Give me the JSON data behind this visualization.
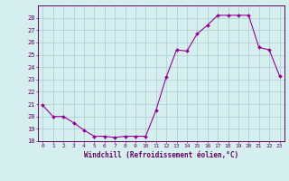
{
  "x": [
    0,
    1,
    2,
    3,
    4,
    5,
    6,
    7,
    8,
    9,
    10,
    11,
    12,
    13,
    14,
    15,
    16,
    17,
    18,
    19,
    20,
    21,
    22,
    23
  ],
  "y": [
    20.9,
    20.0,
    20.0,
    19.5,
    18.9,
    18.4,
    18.4,
    18.3,
    18.4,
    18.4,
    18.4,
    20.5,
    23.2,
    25.4,
    25.3,
    26.7,
    27.4,
    28.2,
    28.2,
    28.2,
    28.2,
    25.6,
    25.4,
    23.3
  ],
  "ylim": [
    18,
    29
  ],
  "yticks": [
    18,
    19,
    20,
    21,
    22,
    23,
    24,
    25,
    26,
    27,
    28
  ],
  "xticks": [
    0,
    1,
    2,
    3,
    4,
    5,
    6,
    7,
    8,
    9,
    10,
    11,
    12,
    13,
    14,
    15,
    16,
    17,
    18,
    19,
    20,
    21,
    22,
    23
  ],
  "xlabel": "Windchill (Refroidissement éolien,°C)",
  "line_color": "#990099",
  "marker_color": "#990099",
  "bg_color": "#d5efef",
  "grid_color": "#aacccc",
  "axis_color": "#660066",
  "tick_label_color": "#660066",
  "xlabel_color": "#660066"
}
